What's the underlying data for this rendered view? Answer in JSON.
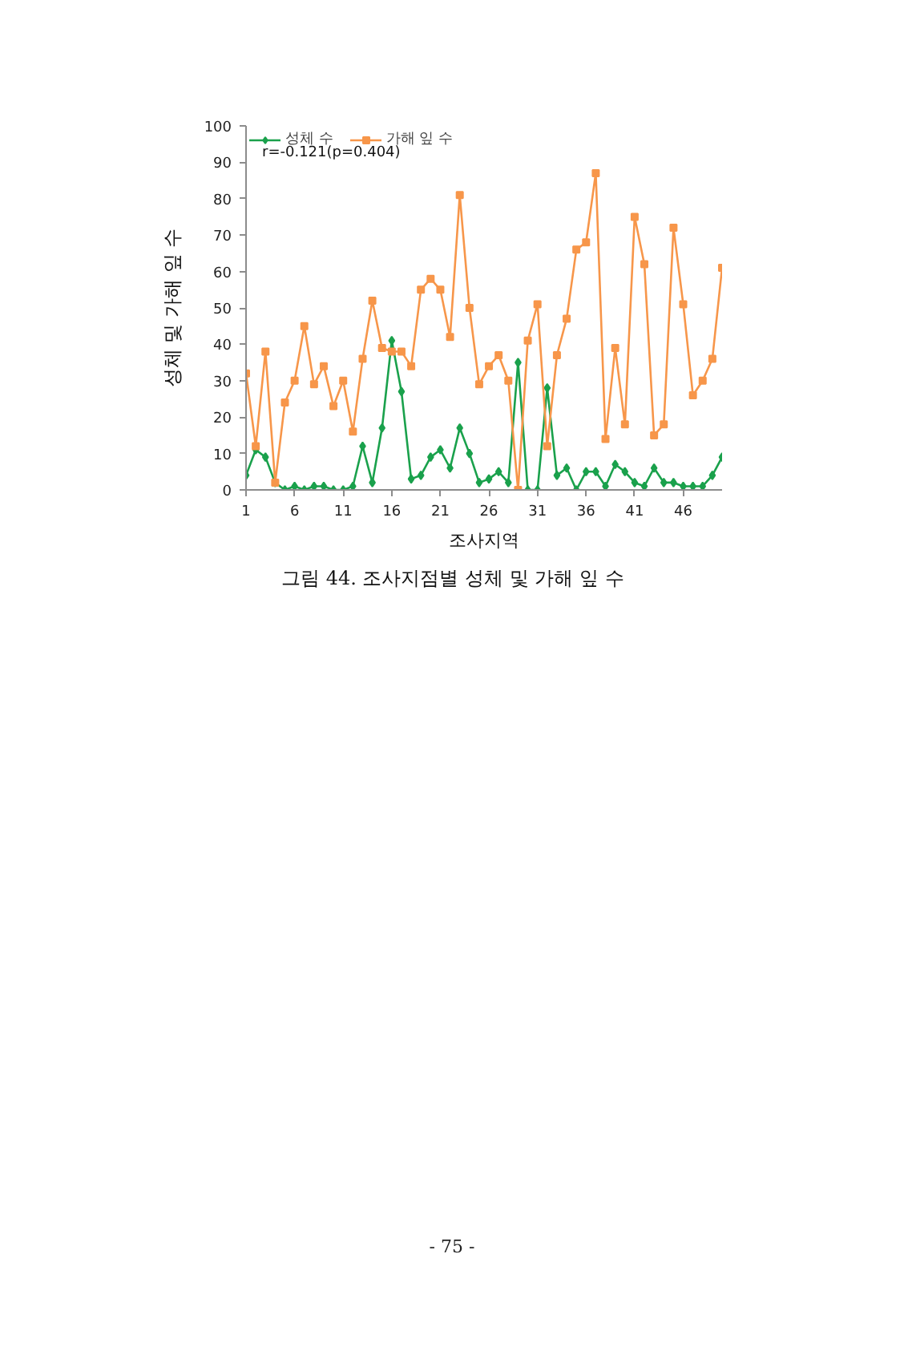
{
  "chart_data": {
    "type": "line",
    "title": "그림 44. 조사지점별 성체 및 가해 잎 수",
    "xlabel": "조사지역",
    "ylabel": "성체 및 가해 잎 수",
    "annotations": [
      "r=-0.121(p=0.404)",
      "- 75 -"
    ],
    "x": [
      1,
      2,
      3,
      4,
      5,
      6,
      7,
      8,
      9,
      10,
      11,
      12,
      13,
      14,
      15,
      16,
      17,
      18,
      19,
      20,
      21,
      22,
      23,
      24,
      25,
      26,
      27,
      28,
      29,
      30,
      31,
      32,
      33,
      34,
      35,
      36,
      37,
      38,
      39,
      40,
      41,
      42,
      43,
      44,
      45,
      46,
      47,
      48,
      49,
      50
    ],
    "series": [
      {
        "name": "성체 수",
        "color": "#1aa14c",
        "marker": "diamond",
        "values": [
          4,
          11,
          9,
          2,
          0,
          1,
          0,
          1,
          1,
          0,
          0,
          1,
          12,
          2,
          17,
          41,
          27,
          3,
          4,
          9,
          11,
          6,
          17,
          10,
          2,
          3,
          5,
          2,
          35,
          0,
          0,
          28,
          4,
          6,
          0,
          5,
          5,
          1,
          7,
          5,
          2,
          1,
          6,
          2,
          2,
          1,
          1,
          1,
          4,
          9
        ]
      },
      {
        "name": "가해 잎 수",
        "color": "#f7964a",
        "marker": "square",
        "values": [
          32,
          12,
          38,
          2,
          24,
          30,
          45,
          29,
          34,
          23,
          30,
          16,
          36,
          52,
          39,
          38,
          38,
          34,
          55,
          58,
          55,
          42,
          81,
          50,
          29,
          34,
          37,
          30,
          0,
          41,
          51,
          12,
          37,
          47,
          66,
          68,
          87,
          14,
          39,
          18,
          75,
          62,
          15,
          18,
          72,
          51,
          26,
          30,
          36,
          61
        ]
      }
    ],
    "xlim": [
      1,
      50
    ],
    "ylim": [
      0,
      100
    ],
    "xticks": [
      1,
      6,
      11,
      16,
      21,
      26,
      31,
      36,
      41,
      46
    ],
    "yticks": [
      0,
      10,
      20,
      30,
      40,
      50,
      60,
      70,
      80,
      90,
      100
    ],
    "legend": "top left",
    "line_style": "solid"
  }
}
